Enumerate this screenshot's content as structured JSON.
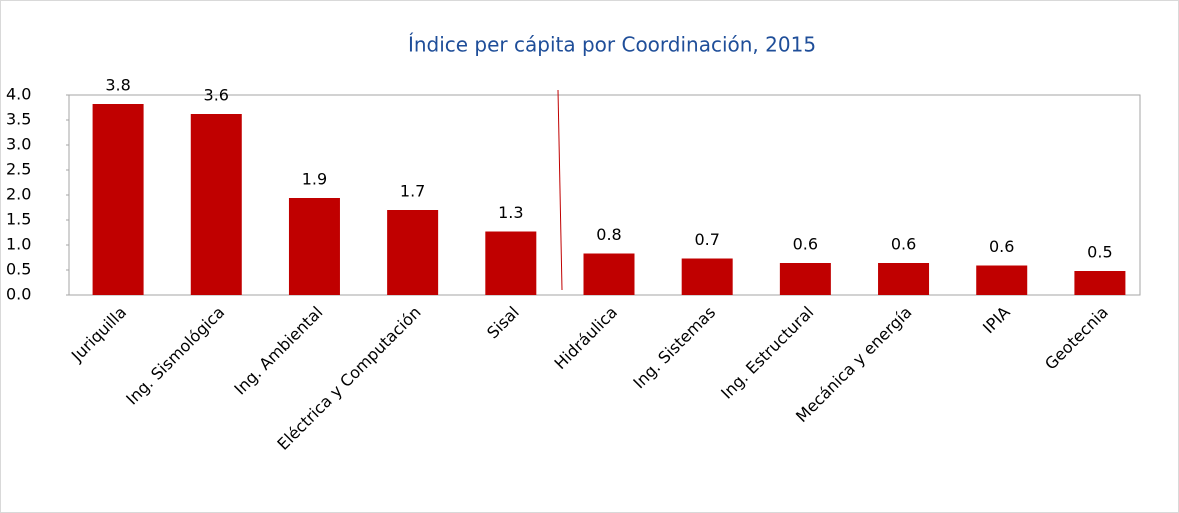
{
  "chart_data": {
    "type": "bar",
    "title": "Índice per cápita por Coordinación, 2015",
    "categories": [
      "Juriquilla",
      "Ing. Sismológica",
      "Ing. Ambiental",
      "Eléctrica y Computación",
      "Sisal",
      "Hidráulica",
      "Ing. Sistemas",
      "Ing. Estructural",
      "Mecánica y energía",
      "IPIA",
      "Geotecnia"
    ],
    "values": [
      3.82,
      3.62,
      1.94,
      1.7,
      1.27,
      0.83,
      0.73,
      0.64,
      0.64,
      0.59,
      0.48
    ],
    "value_labels": [
      "3.8",
      "3.6",
      "1.9",
      "1.7",
      "1.3",
      "0.8",
      "0.7",
      "0.6",
      "0.6",
      "0.6",
      "0.5"
    ],
    "color": "#c00000",
    "ylim": [
      0,
      4
    ],
    "yticks": [
      {
        "value": 0,
        "label": "0.0"
      },
      0.5,
      {
        "value": 1,
        "label": "1.0"
      },
      1.5,
      {
        "value": 2,
        "label": "2.0"
      },
      2.5,
      {
        "value": 3,
        "label": "3.0"
      },
      3.5,
      {
        "value": 4,
        "label": "4.0"
      }
    ],
    "grid": false
  }
}
